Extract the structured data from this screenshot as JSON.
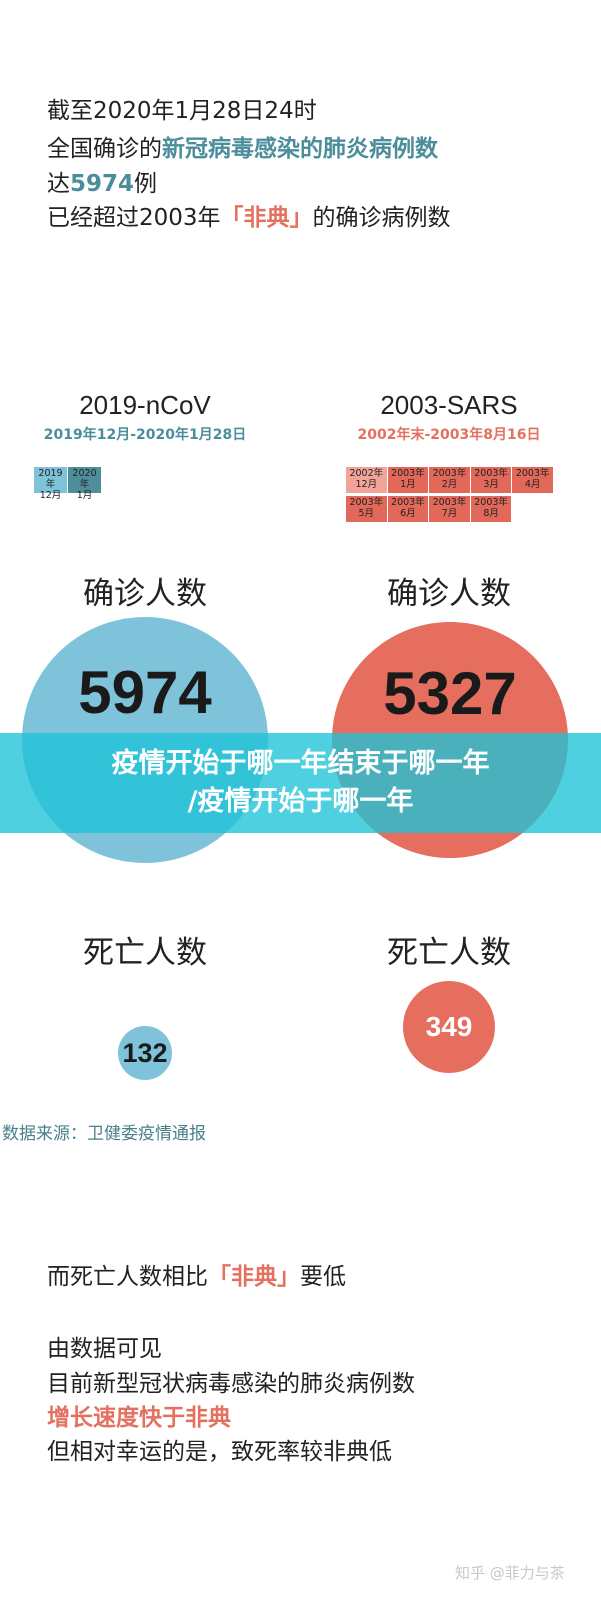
{
  "intro": {
    "line1": "截至2020年1月28日24时",
    "line2_prefix": "全国确诊的",
    "line2_highlight": "新冠病毒感染的肺炎病例数",
    "line3_prefix": "达",
    "line3_highlight": "5974",
    "line3_suffix": "例",
    "line4_prefix": "已经超过2003年",
    "line4_highlight": "「非典」",
    "line4_suffix": "的确诊病例数"
  },
  "ncov": {
    "title": "2019-nCoV",
    "period": "2019年12月-2020年1月28日",
    "months": [
      {
        "year": "2019年",
        "month": "12月"
      },
      {
        "year": "2020年",
        "month": "1月"
      }
    ],
    "confirmed_label": "确诊人数",
    "confirmed": "5974",
    "deaths_label": "死亡人数",
    "deaths": "132"
  },
  "sars": {
    "title": "2003-SARS",
    "period": "2002年末-2003年8月16日",
    "months": [
      {
        "year": "2002年",
        "month": "12月"
      },
      {
        "year": "2003年",
        "month": "1月"
      },
      {
        "year": "2003年",
        "month": "2月"
      },
      {
        "year": "2003年",
        "month": "3月"
      },
      {
        "year": "2003年",
        "month": "4月"
      },
      {
        "year": "2003年",
        "month": "5月"
      },
      {
        "year": "2003年",
        "month": "6月"
      },
      {
        "year": "2003年",
        "month": "7月"
      },
      {
        "year": "2003年",
        "month": "8月"
      }
    ],
    "confirmed_label": "确诊人数",
    "confirmed": "5327",
    "deaths_label": "死亡人数",
    "deaths": "349"
  },
  "banner": {
    "line1": "疫情开始于哪一年结束于哪一年",
    "line2": "/疫情开始于哪一年"
  },
  "source": "数据来源：卫健委疫情通报",
  "conclusion": {
    "line1_prefix": "而死亡人数相比",
    "line1_highlight": "「非典」",
    "line1_suffix": "要低",
    "line2": "由数据可见",
    "line3": "目前新型冠状病毒感染的肺炎病例数",
    "line4": "增长速度快于非典",
    "line5": "但相对幸运的是，致死率较非典低"
  },
  "watermark": "知乎 @菲力与茶",
  "colors": {
    "teal": "#4b8e9b",
    "red": "#e4705f",
    "blue_circle": "#7ec3da",
    "red_circle": "#e56e5e",
    "banner": "#1ec3d7"
  }
}
